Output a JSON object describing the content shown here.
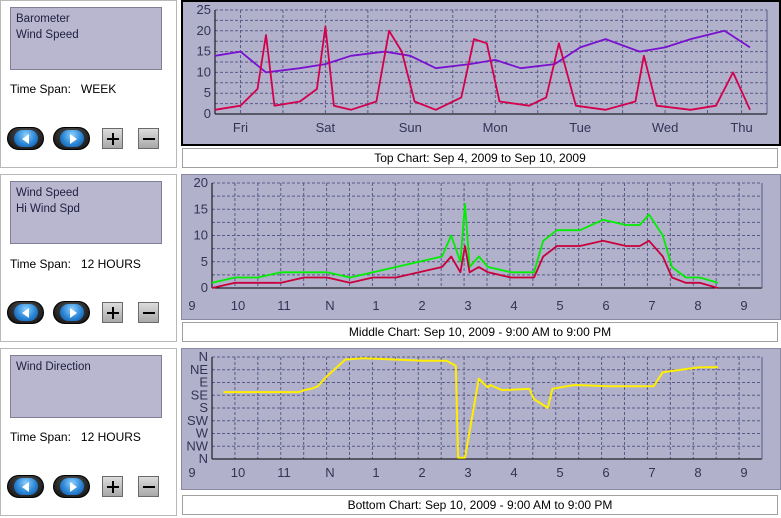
{
  "panels": [
    {
      "series_list": [
        "Barometer",
        "Wind Speed"
      ],
      "time_span_label": "Time Span:",
      "time_span_value": "WEEK"
    },
    {
      "series_list": [
        "Wind Speed",
        "Hi Wind Spd"
      ],
      "time_span_label": "Time Span:",
      "time_span_value": "12 HOURS"
    },
    {
      "series_list": [
        "Wind Direction"
      ],
      "time_span_label": "Time Span:",
      "time_span_value": "12 HOURS"
    }
  ],
  "controls": {
    "back_icon": "left-arrow-icon",
    "forward_icon": "right-arrow-icon",
    "zoom_in_label": "+",
    "zoom_out_label": "−"
  },
  "captions": {
    "top": "Top Chart:  Sep 4, 2009  to  Sep 10, 2009",
    "middle": "Middle Chart:  Sep 10, 2009 - 9:00 AM  to  9:00 PM",
    "bottom": "Bottom Chart:  Sep 10, 2009 - 9:00 AM  to  9:00 PM"
  },
  "colors": {
    "plot_bg": "#b1b1cb",
    "grid": "#5a5a88",
    "wind_speed_top": "#d4004e",
    "barometer": "#7a10d0",
    "hi_wind": "#00ee00",
    "wind_middle": "#c8003c",
    "direction": "#ffee00"
  },
  "chart_data": [
    {
      "type": "line",
      "chart": "top",
      "x_tick_labels": [
        "Fri",
        "Sat",
        "Sun",
        "Mon",
        "Tue",
        "Wed",
        "Thu"
      ],
      "y_tick_labels": [
        "0",
        "5",
        "10",
        "15",
        "20",
        "25"
      ],
      "ylim": [
        0,
        25
      ],
      "grid": true,
      "series": [
        {
          "x": [
            0,
            0.3,
            0.6,
            1.0,
            1.3,
            1.6,
            2.0,
            2.3,
            2.6,
            3.0,
            3.3,
            3.6,
            4.0,
            4.3,
            4.6,
            5.0,
            5.3,
            5.6,
            6.0,
            6.3
          ],
          "values": [
            14,
            15,
            10,
            11,
            12,
            14,
            15,
            14,
            11,
            12,
            13,
            11,
            12,
            16,
            18,
            15,
            16,
            18,
            20,
            16
          ]
        },
        {
          "x": [
            0,
            0.3,
            0.5,
            0.6,
            0.7,
            1.0,
            1.2,
            1.3,
            1.4,
            1.6,
            1.9,
            2.05,
            2.2,
            2.35,
            2.6,
            2.9,
            3.05,
            3.2,
            3.35,
            3.7,
            3.9,
            4.05,
            4.25,
            4.6,
            4.95,
            5.05,
            5.2,
            5.6,
            5.9,
            6.1,
            6.3
          ],
          "values": [
            1,
            2,
            6,
            19,
            2,
            3,
            6,
            21,
            2,
            1,
            3,
            20,
            15,
            3,
            1,
            4,
            18,
            17,
            3,
            2,
            4,
            17,
            2,
            1,
            3,
            14,
            2,
            1,
            2,
            10,
            1
          ]
        }
      ]
    },
    {
      "type": "line",
      "chart": "middle",
      "x_tick_labels": [
        "9",
        "10",
        "11",
        "N",
        "1",
        "2",
        "3",
        "4",
        "5",
        "6",
        "7",
        "8",
        "9"
      ],
      "y_tick_labels": [
        "0",
        "5",
        "10",
        "15",
        "20"
      ],
      "ylim": [
        0,
        20
      ],
      "grid": true,
      "series": [
        {
          "x": [
            0,
            0.5,
            1.0,
            1.5,
            2.0,
            2.5,
            3.0,
            3.5,
            4.0,
            4.5,
            5.0,
            5.2,
            5.4,
            5.5,
            5.6,
            5.8,
            6.0,
            6.5,
            7.0,
            7.2,
            7.5,
            8.0,
            8.5,
            9.0,
            9.3,
            9.5,
            9.8,
            10.0,
            10.3,
            10.6,
            11.0
          ],
          "values": [
            1,
            2,
            2,
            3,
            3,
            3,
            2,
            3,
            4,
            5,
            6,
            10,
            5,
            16,
            4,
            6,
            4,
            3,
            3,
            9,
            11,
            11,
            13,
            12,
            12,
            14,
            10,
            4,
            2,
            2,
            1
          ]
        },
        {
          "x": [
            0,
            0.5,
            1.0,
            1.5,
            2.0,
            2.5,
            3.0,
            3.5,
            4.0,
            4.5,
            5.0,
            5.2,
            5.4,
            5.5,
            5.6,
            5.8,
            6.0,
            6.5,
            7.0,
            7.2,
            7.5,
            8.0,
            8.5,
            9.0,
            9.3,
            9.5,
            9.8,
            10.0,
            10.3,
            10.6,
            11.0
          ],
          "values": [
            0,
            1,
            1,
            1,
            2,
            2,
            1,
            2,
            2,
            3,
            4,
            6,
            3,
            8,
            3,
            4,
            3,
            2,
            2,
            6,
            8,
            8,
            9,
            8,
            8,
            9,
            6,
            2,
            1,
            1,
            0
          ]
        }
      ]
    },
    {
      "type": "line",
      "chart": "bottom",
      "x_tick_labels": [
        "9",
        "10",
        "11",
        "N",
        "1",
        "2",
        "3",
        "4",
        "5",
        "6",
        "7",
        "8",
        "9"
      ],
      "y_tick_labels": [
        "N",
        "NW",
        "W",
        "SW",
        "S",
        "SE",
        "E",
        "NE",
        "N"
      ],
      "grid": true,
      "series": [
        {
          "x": [
            0.25,
            1.9,
            2.0,
            2.15,
            2.3,
            2.5,
            2.9,
            3.3,
            4.6,
            5.1,
            5.3,
            5.35,
            5.5,
            5.8,
            6.0,
            6.05,
            6.3,
            6.9,
            7.0,
            7.3,
            7.4,
            7.55,
            7.7,
            7.9,
            8.6,
            9.6,
            9.8,
            10.6,
            11.0
          ],
          "values": [
            5.25,
            5.25,
            5.4,
            5.5,
            5.7,
            6.5,
            7.8,
            7.9,
            7.7,
            7.7,
            7.3,
            0.1,
            0.1,
            6.3,
            5.6,
            5.8,
            5.4,
            5.5,
            4.7,
            4.0,
            5.5,
            5.6,
            5.7,
            5.8,
            5.7,
            5.7,
            6.8,
            7.2,
            7.2
          ]
        }
      ]
    }
  ]
}
